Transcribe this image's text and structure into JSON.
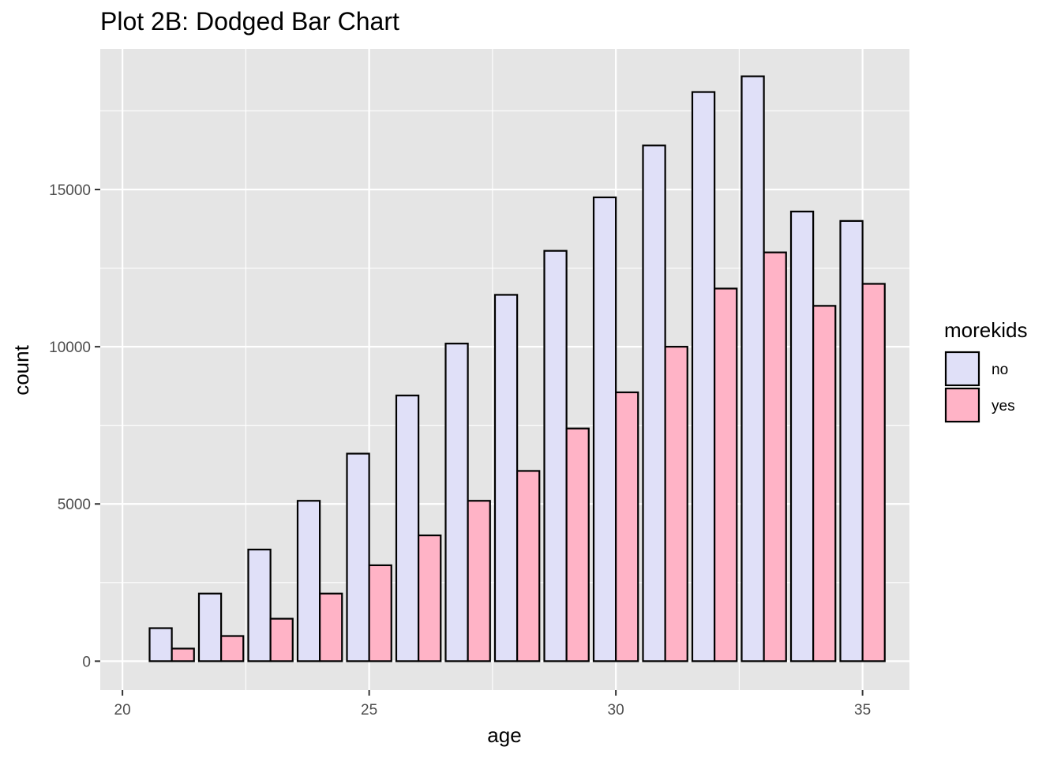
{
  "chart_data": {
    "type": "bar",
    "title": "Plot 2B: Dodged Bar Chart",
    "xlabel": "age",
    "ylabel": "count",
    "x": [
      21,
      22,
      23,
      24,
      25,
      26,
      27,
      28,
      29,
      30,
      31,
      32,
      33,
      34,
      35
    ],
    "series": [
      {
        "name": "no",
        "color": "#e0e0f8",
        "values": [
          1050,
          2150,
          3550,
          5100,
          6600,
          8450,
          10100,
          11650,
          13050,
          14750,
          16400,
          18100,
          18600,
          14300,
          14000
        ]
      },
      {
        "name": "yes",
        "color": "#ffb3c6",
        "values": [
          400,
          800,
          1350,
          2150,
          3050,
          4000,
          5100,
          6050,
          7400,
          8550,
          10000,
          11850,
          13000,
          11300,
          12000
        ]
      }
    ],
    "xlim": [
      19.55,
      35.95
    ],
    "ylim": [
      -920,
      19470
    ],
    "x_ticks": [
      "20",
      "25",
      "30",
      "35"
    ],
    "y_ticks": [
      "0",
      "5000",
      "10000",
      "15000"
    ],
    "legend": {
      "title": "morekids",
      "position": "right"
    },
    "grid": true,
    "panel_background": "#e5e5e5"
  }
}
